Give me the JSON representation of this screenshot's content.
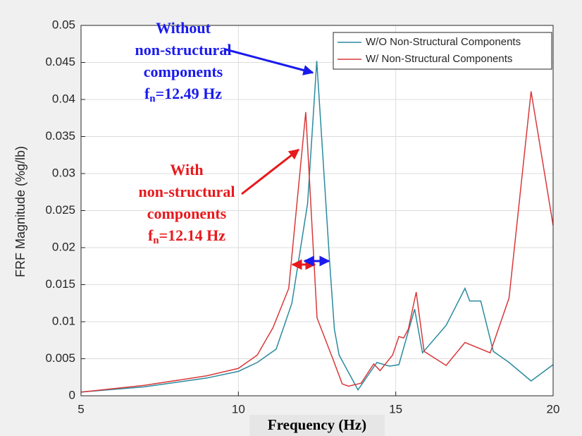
{
  "chart_data": {
    "type": "line",
    "xlabel": "Frequency (Hz)",
    "ylabel": "FRF Magnitude (%g/lb)",
    "xlim": [
      5,
      20
    ],
    "ylim": [
      0,
      0.05
    ],
    "xticks": [
      5,
      10,
      15,
      20
    ],
    "yticks": [
      0,
      0.005,
      0.01,
      0.015,
      0.02,
      0.025,
      0.03,
      0.035,
      0.04,
      0.045,
      0.05
    ],
    "grid": true,
    "legend": "upper right",
    "series": [
      {
        "name": "W/O Non-Structural Components",
        "color": "#2a8a9e",
        "x": [
          5,
          7,
          9,
          10,
          10.6,
          11.2,
          11.7,
          12.2,
          12.49,
          12.9,
          13.05,
          13.2,
          13.8,
          14.4,
          14.8,
          15.1,
          15.6,
          15.85,
          16.6,
          17.2,
          17.35,
          17.7,
          18.1,
          18.6,
          19.3,
          20
        ],
        "values": [
          0.0005,
          0.0012,
          0.0024,
          0.0033,
          0.0045,
          0.0063,
          0.0125,
          0.026,
          0.0452,
          0.018,
          0.009,
          0.0055,
          0.0008,
          0.0045,
          0.004,
          0.0042,
          0.0117,
          0.0058,
          0.0095,
          0.0145,
          0.0128,
          0.0128,
          0.006,
          0.0045,
          0.002,
          0.0042
        ]
      },
      {
        "name": "W/ Non-Structural Components",
        "color": "#d9383a",
        "x": [
          5,
          7,
          9,
          10,
          10.6,
          11.1,
          11.6,
          12.14,
          12.5,
          13.0,
          13.3,
          13.5,
          13.9,
          14.3,
          14.5,
          14.9,
          15.1,
          15.25,
          15.4,
          15.65,
          15.9,
          16.6,
          17.2,
          18,
          18.6,
          19.3,
          20
        ],
        "values": [
          0.0005,
          0.0014,
          0.0027,
          0.0037,
          0.0055,
          0.0092,
          0.0145,
          0.0383,
          0.0105,
          0.005,
          0.0016,
          0.0013,
          0.0017,
          0.0043,
          0.0034,
          0.0055,
          0.008,
          0.0078,
          0.009,
          0.014,
          0.006,
          0.0041,
          0.0072,
          0.0058,
          0.0132,
          0.0411,
          0.023
        ]
      }
    ],
    "annotations": [
      {
        "lines": [
          "Without",
          "non-structural",
          "components"
        ],
        "freq": [
          "f",
          "n",
          "=12.49 Hz"
        ],
        "color": "#1a1aee"
      },
      {
        "lines": [
          "With",
          "non-structural",
          "components"
        ],
        "freq": [
          "f",
          "n",
          "=12.14 Hz"
        ],
        "color": "#e8191c"
      }
    ]
  }
}
